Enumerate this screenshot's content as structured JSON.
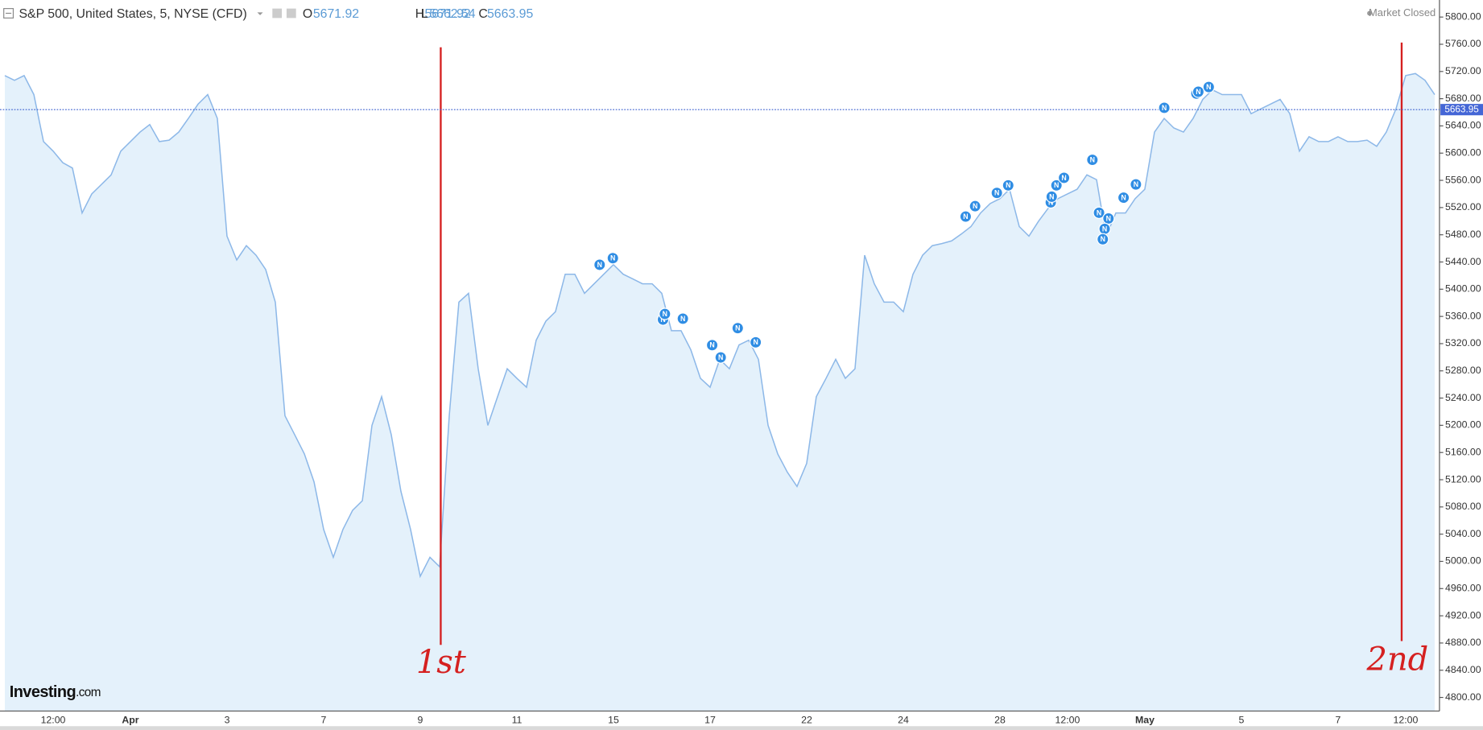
{
  "header": {
    "title": "S&P 500, United States, 5, NYSE (CFD)",
    "ohlc": [
      {
        "label": "O",
        "value": "5671.92"
      },
      {
        "label": "H",
        "value": "5671.92"
      },
      {
        "label": "L",
        "value": "5662.54"
      },
      {
        "label": "C",
        "value": "5663.95"
      }
    ],
    "status": "Market Closed"
  },
  "logo": {
    "name": "Investing",
    "suffix": ".com"
  },
  "news_marker_label": "N",
  "chart_data": {
    "type": "area",
    "color": "#8db8e8",
    "fill": "#e4f1fb",
    "grid": false,
    "categories": [
      null,
      null,
      null,
      null,
      null,
      "12:00",
      null,
      null,
      null,
      null,
      null,
      null,
      null,
      "Apr",
      null,
      null,
      null,
      null,
      null,
      null,
      null,
      null,
      null,
      "3",
      null,
      null,
      null,
      null,
      null,
      null,
      null,
      null,
      null,
      "7",
      null,
      null,
      null,
      null,
      null,
      null,
      null,
      null,
      null,
      "9",
      null,
      null,
      null,
      null,
      null,
      null,
      null,
      null,
      null,
      "11",
      null,
      null,
      null,
      null,
      null,
      null,
      null,
      null,
      null,
      "15",
      null,
      null,
      null,
      null,
      null,
      null,
      null,
      null,
      null,
      "17",
      null,
      null,
      null,
      null,
      null,
      null,
      null,
      null,
      null,
      "22",
      null,
      null,
      null,
      null,
      null,
      null,
      null,
      null,
      null,
      "24",
      null,
      null,
      null,
      null,
      null,
      null,
      null,
      null,
      null,
      "28",
      null,
      null,
      null,
      null,
      null,
      null,
      "12:00",
      null,
      null,
      null,
      null,
      null,
      null,
      null,
      "May",
      null,
      null,
      null,
      null,
      null,
      null,
      null,
      null,
      null,
      "5",
      null,
      null,
      null,
      null,
      null,
      null,
      null,
      null,
      null,
      "7",
      null,
      null,
      null,
      null,
      null,
      null,
      "12:00",
      null,
      null,
      null
    ],
    "values": [
      5714,
      5707,
      5714,
      5686,
      5617,
      5603,
      5586,
      5578,
      5512,
      5540,
      5554,
      5568,
      5603,
      5617,
      5631,
      5642,
      5617,
      5619,
      5631,
      5651,
      5672,
      5686,
      5651,
      5478,
      5443,
      5464,
      5450,
      5429,
      5381,
      5214,
      5186,
      5158,
      5117,
      5047,
      5006,
      5047,
      5075,
      5089,
      5200,
      5242,
      5186,
      5103,
      5047,
      4978,
      5006,
      4992,
      5214,
      5381,
      5394,
      5283,
      5200,
      5242,
      5283,
      5269,
      5256,
      5325,
      5353,
      5367,
      5422,
      5422,
      5394,
      5408,
      5422,
      5436,
      5422,
      5415,
      5408,
      5408,
      5394,
      5339,
      5339,
      5311,
      5269,
      5256,
      5297,
      5283,
      5318,
      5325,
      5297,
      5200,
      5158,
      5131,
      5110,
      5144,
      5242,
      5269,
      5297,
      5269,
      5283,
      5450,
      5408,
      5381,
      5381,
      5367,
      5422,
      5450,
      5464,
      5467,
      5471,
      5481,
      5492,
      5512,
      5526,
      5533,
      5547,
      5492,
      5478,
      5500,
      5519,
      5533,
      5540,
      5547,
      5568,
      5561,
      5478,
      5512,
      5512,
      5533,
      5547,
      5631,
      5651,
      5637,
      5631,
      5651,
      5679,
      5693,
      5686,
      5686,
      5686,
      5658,
      5665,
      5672,
      5679,
      5658,
      5603,
      5624,
      5617,
      5617,
      5624,
      5617,
      5617,
      5619,
      5610,
      5631,
      5665,
      5714,
      5717,
      5707,
      5686
    ],
    "last_price": 5663.95,
    "ylim": [
      4780,
      5825
    ],
    "yticks": [
      {
        "value": 4800,
        "label": "4800.00"
      },
      {
        "value": 4840,
        "label": "4840.00"
      },
      {
        "value": 4880,
        "label": "4880.00"
      },
      {
        "value": 4920,
        "label": "4920.00"
      },
      {
        "value": 4960,
        "label": "4960.00"
      },
      {
        "value": 5000,
        "label": "5000.00"
      },
      {
        "value": 5040,
        "label": "5040.00"
      },
      {
        "value": 5080,
        "label": "5080.00"
      },
      {
        "value": 5120,
        "label": "5120.00"
      },
      {
        "value": 5160,
        "label": "5160.00"
      },
      {
        "value": 5200,
        "label": "5200.00"
      },
      {
        "value": 5240,
        "label": "5240.00"
      },
      {
        "value": 5280,
        "label": "5280.00"
      },
      {
        "value": 5320,
        "label": "5320.00"
      },
      {
        "value": 5360,
        "label": "5360.00"
      },
      {
        "value": 5400,
        "label": "5400.00"
      },
      {
        "value": 5440,
        "label": "5440.00"
      },
      {
        "value": 5480,
        "label": "5480.00"
      },
      {
        "value": 5520,
        "label": "5520.00"
      },
      {
        "value": 5560,
        "label": "5560.00"
      },
      {
        "value": 5600,
        "label": "5600.00"
      },
      {
        "value": 5640,
        "label": "5640.00"
      },
      {
        "value": 5680,
        "label": "5680.00"
      },
      {
        "value": 5720,
        "label": "5720.00"
      },
      {
        "value": 5760,
        "label": "5760.00"
      },
      {
        "value": 5800,
        "label": "5800.00"
      }
    ],
    "annotations": [
      "1st",
      "2nd"
    ]
  }
}
